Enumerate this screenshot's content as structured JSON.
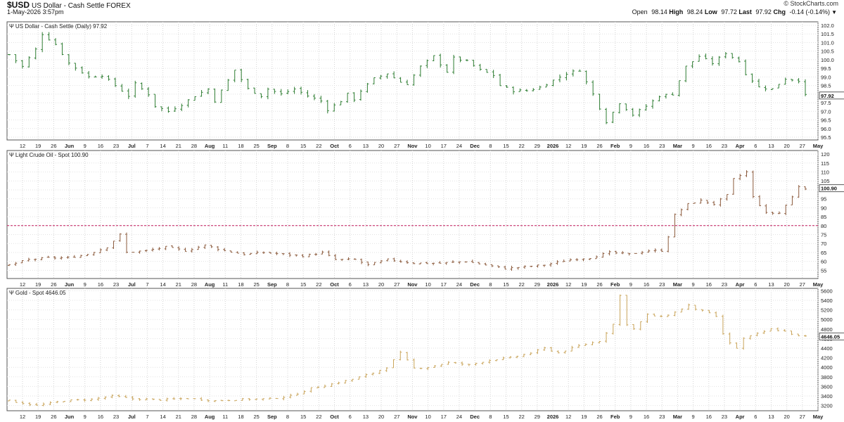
{
  "header": {
    "symbol": "$USD",
    "name": "US Dollar - Cash Settle FOREX",
    "date": "1-May-2026 3:57pm",
    "brand": "© StockCharts.com",
    "open_label": "Open",
    "open": "98.14",
    "high_label": "High",
    "high": "98.24",
    "low_label": "Low",
    "low": "97.72",
    "last_label": "Last",
    "last": "97.92",
    "chg_label": "Chg",
    "chg": "-0.14 (-0.14%)"
  },
  "x_labels": [
    "12",
    "19",
    "26",
    "Jun",
    "9",
    "16",
    "23",
    "Jul",
    "7",
    "14",
    "21",
    "28",
    "Aug",
    "11",
    "18",
    "25",
    "Sep",
    "8",
    "15",
    "22",
    "Oct",
    "6",
    "13",
    "20",
    "27",
    "Nov",
    "10",
    "17",
    "24",
    "Dec",
    "8",
    "15",
    "22",
    "29",
    "2026",
    "12",
    "19",
    "26",
    "Feb",
    "9",
    "16",
    "23",
    "Mar",
    "9",
    "16",
    "23",
    "Apr",
    "6",
    "13",
    "20",
    "27",
    "May"
  ],
  "x_bold": [
    "Jun",
    "Jul",
    "Aug",
    "Sep",
    "Oct",
    "Nov",
    "Dec",
    "2026",
    "Feb",
    "Mar",
    "Apr",
    "May"
  ],
  "chart_data": [
    {
      "type": "ohlc",
      "title": "US Dollar - Cash Settle (Daily) 97.92",
      "color": "#2e7d32",
      "ylim": [
        95.5,
        102.0
      ],
      "ticks": [
        "95.5",
        "96.0",
        "96.5",
        "97.0",
        "97.5",
        "98.0",
        "98.5",
        "99.0",
        "99.5",
        "100.0",
        "100.5",
        "101.0",
        "101.5",
        "102.0"
      ],
      "last_label": "97.92",
      "series_points": [
        [
          0,
          100.3
        ],
        [
          2,
          99.6
        ],
        [
          4,
          100.6
        ],
        [
          5,
          101.5
        ],
        [
          7,
          100.9
        ],
        [
          9,
          99.8
        ],
        [
          12,
          99.0
        ],
        [
          14,
          99.1
        ],
        [
          16,
          98.5
        ],
        [
          18,
          97.9
        ],
        [
          19,
          98.6
        ],
        [
          21,
          98.0
        ],
        [
          22,
          97.3
        ],
        [
          24,
          97.0
        ],
        [
          26,
          97.4
        ],
        [
          28,
          97.9
        ],
        [
          30,
          98.3
        ],
        [
          31,
          97.6
        ],
        [
          33,
          98.8
        ],
        [
          34,
          99.4
        ],
        [
          36,
          98.3
        ],
        [
          38,
          97.9
        ],
        [
          39,
          98.3
        ],
        [
          41,
          98.0
        ],
        [
          43,
          98.3
        ],
        [
          45,
          97.9
        ],
        [
          47,
          97.6
        ],
        [
          48,
          97.1
        ],
        [
          50,
          97.6
        ],
        [
          51,
          98.0
        ],
        [
          52,
          97.7
        ],
        [
          53,
          98.2
        ],
        [
          55,
          98.9
        ],
        [
          57,
          99.2
        ],
        [
          59,
          98.7
        ],
        [
          60,
          98.6
        ],
        [
          62,
          99.6
        ],
        [
          64,
          100.2
        ],
        [
          66,
          99.3
        ],
        [
          67,
          100.1
        ],
        [
          69,
          99.9
        ],
        [
          71,
          99.4
        ],
        [
          73,
          99.1
        ],
        [
          74,
          98.5
        ],
        [
          76,
          98.2
        ],
        [
          78,
          98.2
        ],
        [
          80,
          98.4
        ],
        [
          82,
          98.8
        ],
        [
          84,
          99.2
        ],
        [
          86,
          99.4
        ],
        [
          88,
          98.0
        ],
        [
          90,
          96.4
        ],
        [
          92,
          97.5
        ],
        [
          94,
          96.8
        ],
        [
          96,
          97.3
        ],
        [
          98,
          97.9
        ],
        [
          100,
          98.0
        ],
        [
          102,
          99.6
        ],
        [
          104,
          100.2
        ],
        [
          106,
          99.8
        ],
        [
          108,
          100.4
        ],
        [
          110,
          99.9
        ],
        [
          111,
          99.2
        ],
        [
          113,
          98.4
        ],
        [
          115,
          98.3
        ],
        [
          117,
          98.9
        ],
        [
          119,
          98.8
        ],
        [
          120,
          97.92
        ]
      ],
      "n": 121
    },
    {
      "type": "ohlc",
      "title": "Light Crude Oil - Spot 100.90",
      "color": "#8b5a3c",
      "ylim": [
        52,
        122
      ],
      "ticks": [
        "55",
        "60",
        "65",
        "70",
        "75",
        "80",
        "85",
        "90",
        "95",
        "100",
        "105",
        "110",
        "115",
        "120"
      ],
      "last_label": "100.90",
      "reference_line": 80,
      "series_points": [
        [
          0,
          58
        ],
        [
          3,
          61
        ],
        [
          6,
          62
        ],
        [
          9,
          62
        ],
        [
          12,
          64
        ],
        [
          15,
          68
        ],
        [
          17,
          75
        ],
        [
          18,
          65
        ],
        [
          21,
          66
        ],
        [
          24,
          68
        ],
        [
          27,
          66
        ],
        [
          30,
          69
        ],
        [
          33,
          66
        ],
        [
          36,
          64
        ],
        [
          39,
          65
        ],
        [
          42,
          64
        ],
        [
          45,
          63
        ],
        [
          48,
          65
        ],
        [
          50,
          61
        ],
        [
          53,
          61
        ],
        [
          55,
          58
        ],
        [
          58,
          61
        ],
        [
          62,
          59
        ],
        [
          66,
          59
        ],
        [
          70,
          60
        ],
        [
          73,
          58
        ],
        [
          76,
          56
        ],
        [
          79,
          57
        ],
        [
          82,
          58
        ],
        [
          86,
          61
        ],
        [
          89,
          62
        ],
        [
          92,
          65
        ],
        [
          95,
          64
        ],
        [
          98,
          66
        ],
        [
          100,
          66
        ],
        [
          101,
          74
        ],
        [
          102,
          86
        ],
        [
          104,
          92
        ],
        [
          106,
          94
        ],
        [
          108,
          92
        ],
        [
          110,
          97
        ],
        [
          111,
          106
        ],
        [
          113,
          110
        ],
        [
          114,
          96
        ],
        [
          116,
          87
        ],
        [
          118,
          87
        ],
        [
          120,
          96
        ],
        [
          121,
          102
        ],
        [
          122,
          100.9
        ]
      ],
      "n": 123
    },
    {
      "type": "ohlc",
      "title": "Gold - Spot 4646.05",
      "color": "#c9a45a",
      "ylim": [
        3150,
        5650
      ],
      "ticks": [
        "3200",
        "3400",
        "3600",
        "3800",
        "4000",
        "4200",
        "4400",
        "4600",
        "4800",
        "5000",
        "5200",
        "5400",
        "5600"
      ],
      "last_label": "4646.05",
      "series_points": [
        [
          0,
          3300
        ],
        [
          4,
          3200
        ],
        [
          8,
          3300
        ],
        [
          12,
          3330
        ],
        [
          15,
          3400
        ],
        [
          18,
          3340
        ],
        [
          22,
          3320
        ],
        [
          26,
          3350
        ],
        [
          30,
          3300
        ],
        [
          34,
          3330
        ],
        [
          38,
          3340
        ],
        [
          41,
          3400
        ],
        [
          44,
          3560
        ],
        [
          47,
          3650
        ],
        [
          50,
          3750
        ],
        [
          53,
          3880
        ],
        [
          55,
          4000
        ],
        [
          57,
          4300
        ],
        [
          59,
          3980
        ],
        [
          61,
          4000
        ],
        [
          64,
          4100
        ],
        [
          67,
          4050
        ],
        [
          70,
          4150
        ],
        [
          73,
          4200
        ],
        [
          76,
          4300
        ],
        [
          78,
          4400
        ],
        [
          80,
          4300
        ],
        [
          83,
          4450
        ],
        [
          86,
          4550
        ],
        [
          88,
          4900
        ],
        [
          89,
          5500
        ],
        [
          90,
          4900
        ],
        [
          91,
          4800
        ],
        [
          93,
          5100
        ],
        [
          95,
          5050
        ],
        [
          97,
          5150
        ],
        [
          99,
          5300
        ],
        [
          100,
          5200
        ],
        [
          101,
          5200
        ],
        [
          103,
          5050
        ],
        [
          104,
          4700
        ],
        [
          105,
          4500
        ],
        [
          106,
          4400
        ],
        [
          107,
          4600
        ],
        [
          109,
          4700
        ],
        [
          111,
          4800
        ],
        [
          113,
          4750
        ],
        [
          115,
          4650
        ],
        [
          116,
          4646
        ]
      ],
      "n": 117
    }
  ]
}
